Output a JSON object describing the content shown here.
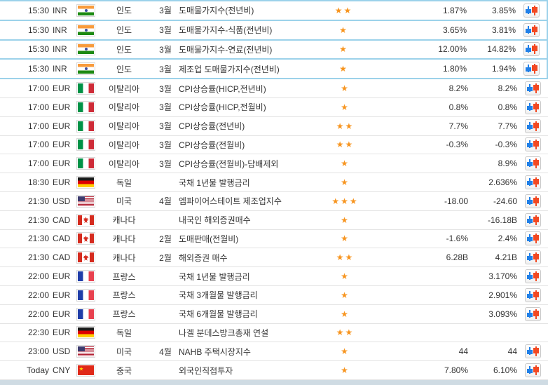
{
  "colors": {
    "star": "#f7941e",
    "highlight_border": "#9cd2ea",
    "row_separator": "#e3e3e3",
    "footer_bar": "#cfdbe3",
    "candle_blue": "#2180e8",
    "candle_red": "#f24822",
    "text": "#333333"
  },
  "calendar": {
    "rows": [
      {
        "time": "15:30",
        "currency": "INR",
        "flag": "india-flag",
        "country": "인도",
        "month": "3월",
        "event": "도매물가지수(전년비)",
        "stars": 2,
        "actual": "1.87%",
        "previous": "3.85%",
        "highlighted": true,
        "has_chart": true
      },
      {
        "time": "15:30",
        "currency": "INR",
        "flag": "india-flag",
        "country": "인도",
        "month": "3월",
        "event": "도매물가지수-식품(전년비)",
        "stars": 1,
        "actual": "3.65%",
        "previous": "3.81%",
        "highlighted": true,
        "has_chart": true
      },
      {
        "time": "15:30",
        "currency": "INR",
        "flag": "india-flag",
        "country": "인도",
        "month": "3월",
        "event": "도매물가지수-연료(전년비)",
        "stars": 1,
        "actual": "12.00%",
        "previous": "14.82%",
        "highlighted": true,
        "has_chart": true
      },
      {
        "time": "15:30",
        "currency": "INR",
        "flag": "india-flag",
        "country": "인도",
        "month": "3월",
        "event": "제조업 도매물가지수(전년비)",
        "stars": 1,
        "actual": "1.80%",
        "previous": "1.94%",
        "highlighted": true,
        "has_chart": true
      },
      {
        "time": "17:00",
        "currency": "EUR",
        "flag": "italy-flag",
        "country": "이탈리아",
        "month": "3월",
        "event": "CPI상승률(HICP,전년비)",
        "stars": 1,
        "actual": "8.2%",
        "previous": "8.2%",
        "highlighted": false,
        "has_chart": true
      },
      {
        "time": "17:00",
        "currency": "EUR",
        "flag": "italy-flag",
        "country": "이탈리아",
        "month": "3월",
        "event": "CPI상승률(HICP,전월비)",
        "stars": 1,
        "actual": "0.8%",
        "previous": "0.8%",
        "highlighted": false,
        "has_chart": true
      },
      {
        "time": "17:00",
        "currency": "EUR",
        "flag": "italy-flag",
        "country": "이탈리아",
        "month": "3월",
        "event": "CPI상승률(전년비)",
        "stars": 2,
        "actual": "7.7%",
        "previous": "7.7%",
        "highlighted": false,
        "has_chart": true
      },
      {
        "time": "17:00",
        "currency": "EUR",
        "flag": "italy-flag",
        "country": "이탈리아",
        "month": "3월",
        "event": "CPI상승률(전월비)",
        "stars": 2,
        "actual": "-0.3%",
        "previous": "-0.3%",
        "highlighted": false,
        "has_chart": true
      },
      {
        "time": "17:00",
        "currency": "EUR",
        "flag": "italy-flag",
        "country": "이탈리아",
        "month": "3월",
        "event": "CPI상승률(전월비)-담배제외",
        "stars": 1,
        "actual": "",
        "previous": "8.9%",
        "highlighted": false,
        "has_chart": true
      },
      {
        "time": "18:30",
        "currency": "EUR",
        "flag": "germany-flag",
        "country": "독일",
        "month": "",
        "event": "국채 1년물 발행금리",
        "stars": 1,
        "actual": "",
        "previous": "2.636%",
        "highlighted": false,
        "has_chart": true
      },
      {
        "time": "21:30",
        "currency": "USD",
        "flag": "usa-flag",
        "country": "미국",
        "month": "4월",
        "event": "엠파이어스테이트 제조업지수",
        "stars": 3,
        "actual": "-18.00",
        "previous": "-24.60",
        "highlighted": false,
        "has_chart": true
      },
      {
        "time": "21:30",
        "currency": "CAD",
        "flag": "canada-flag",
        "country": "캐나다",
        "month": "",
        "event": "내국인 해외증권매수",
        "stars": 1,
        "actual": "",
        "previous": "-16.18B",
        "highlighted": false,
        "has_chart": true
      },
      {
        "time": "21:30",
        "currency": "CAD",
        "flag": "canada-flag",
        "country": "캐나다",
        "month": "2월",
        "event": "도매판매(전월비)",
        "stars": 1,
        "actual": "-1.6%",
        "previous": "2.4%",
        "highlighted": false,
        "has_chart": true
      },
      {
        "time": "21:30",
        "currency": "CAD",
        "flag": "canada-flag",
        "country": "캐나다",
        "month": "2월",
        "event": "해외증권 매수",
        "stars": 2,
        "actual": "6.28B",
        "previous": "4.21B",
        "highlighted": false,
        "has_chart": true
      },
      {
        "time": "22:00",
        "currency": "EUR",
        "flag": "france-flag",
        "country": "프랑스",
        "month": "",
        "event": "국채 1년물 발행금리",
        "stars": 1,
        "actual": "",
        "previous": "3.170%",
        "highlighted": false,
        "has_chart": true
      },
      {
        "time": "22:00",
        "currency": "EUR",
        "flag": "france-flag",
        "country": "프랑스",
        "month": "",
        "event": "국채 3개월물 발행금리",
        "stars": 1,
        "actual": "",
        "previous": "2.901%",
        "highlighted": false,
        "has_chart": true
      },
      {
        "time": "22:00",
        "currency": "EUR",
        "flag": "france-flag",
        "country": "프랑스",
        "month": "",
        "event": "국채 6개월물 발행금리",
        "stars": 1,
        "actual": "",
        "previous": "3.093%",
        "highlighted": false,
        "has_chart": true
      },
      {
        "time": "22:30",
        "currency": "EUR",
        "flag": "germany-flag",
        "country": "독일",
        "month": "",
        "event": "나겔 분데스방크총재 연설",
        "stars": 2,
        "actual": "",
        "previous": "",
        "highlighted": false,
        "has_chart": false
      },
      {
        "time": "23:00",
        "currency": "USD",
        "flag": "usa-flag",
        "country": "미국",
        "month": "4월",
        "event": "NAHB 주택시장지수",
        "stars": 1,
        "actual": "44",
        "previous": "44",
        "highlighted": false,
        "has_chart": true
      },
      {
        "time": "Today",
        "currency": "CNY",
        "flag": "china-flag",
        "country": "중국",
        "month": "",
        "event": "외국인직접투자",
        "stars": 1,
        "actual": "7.80%",
        "previous": "6.10%",
        "highlighted": false,
        "has_chart": true
      }
    ]
  }
}
